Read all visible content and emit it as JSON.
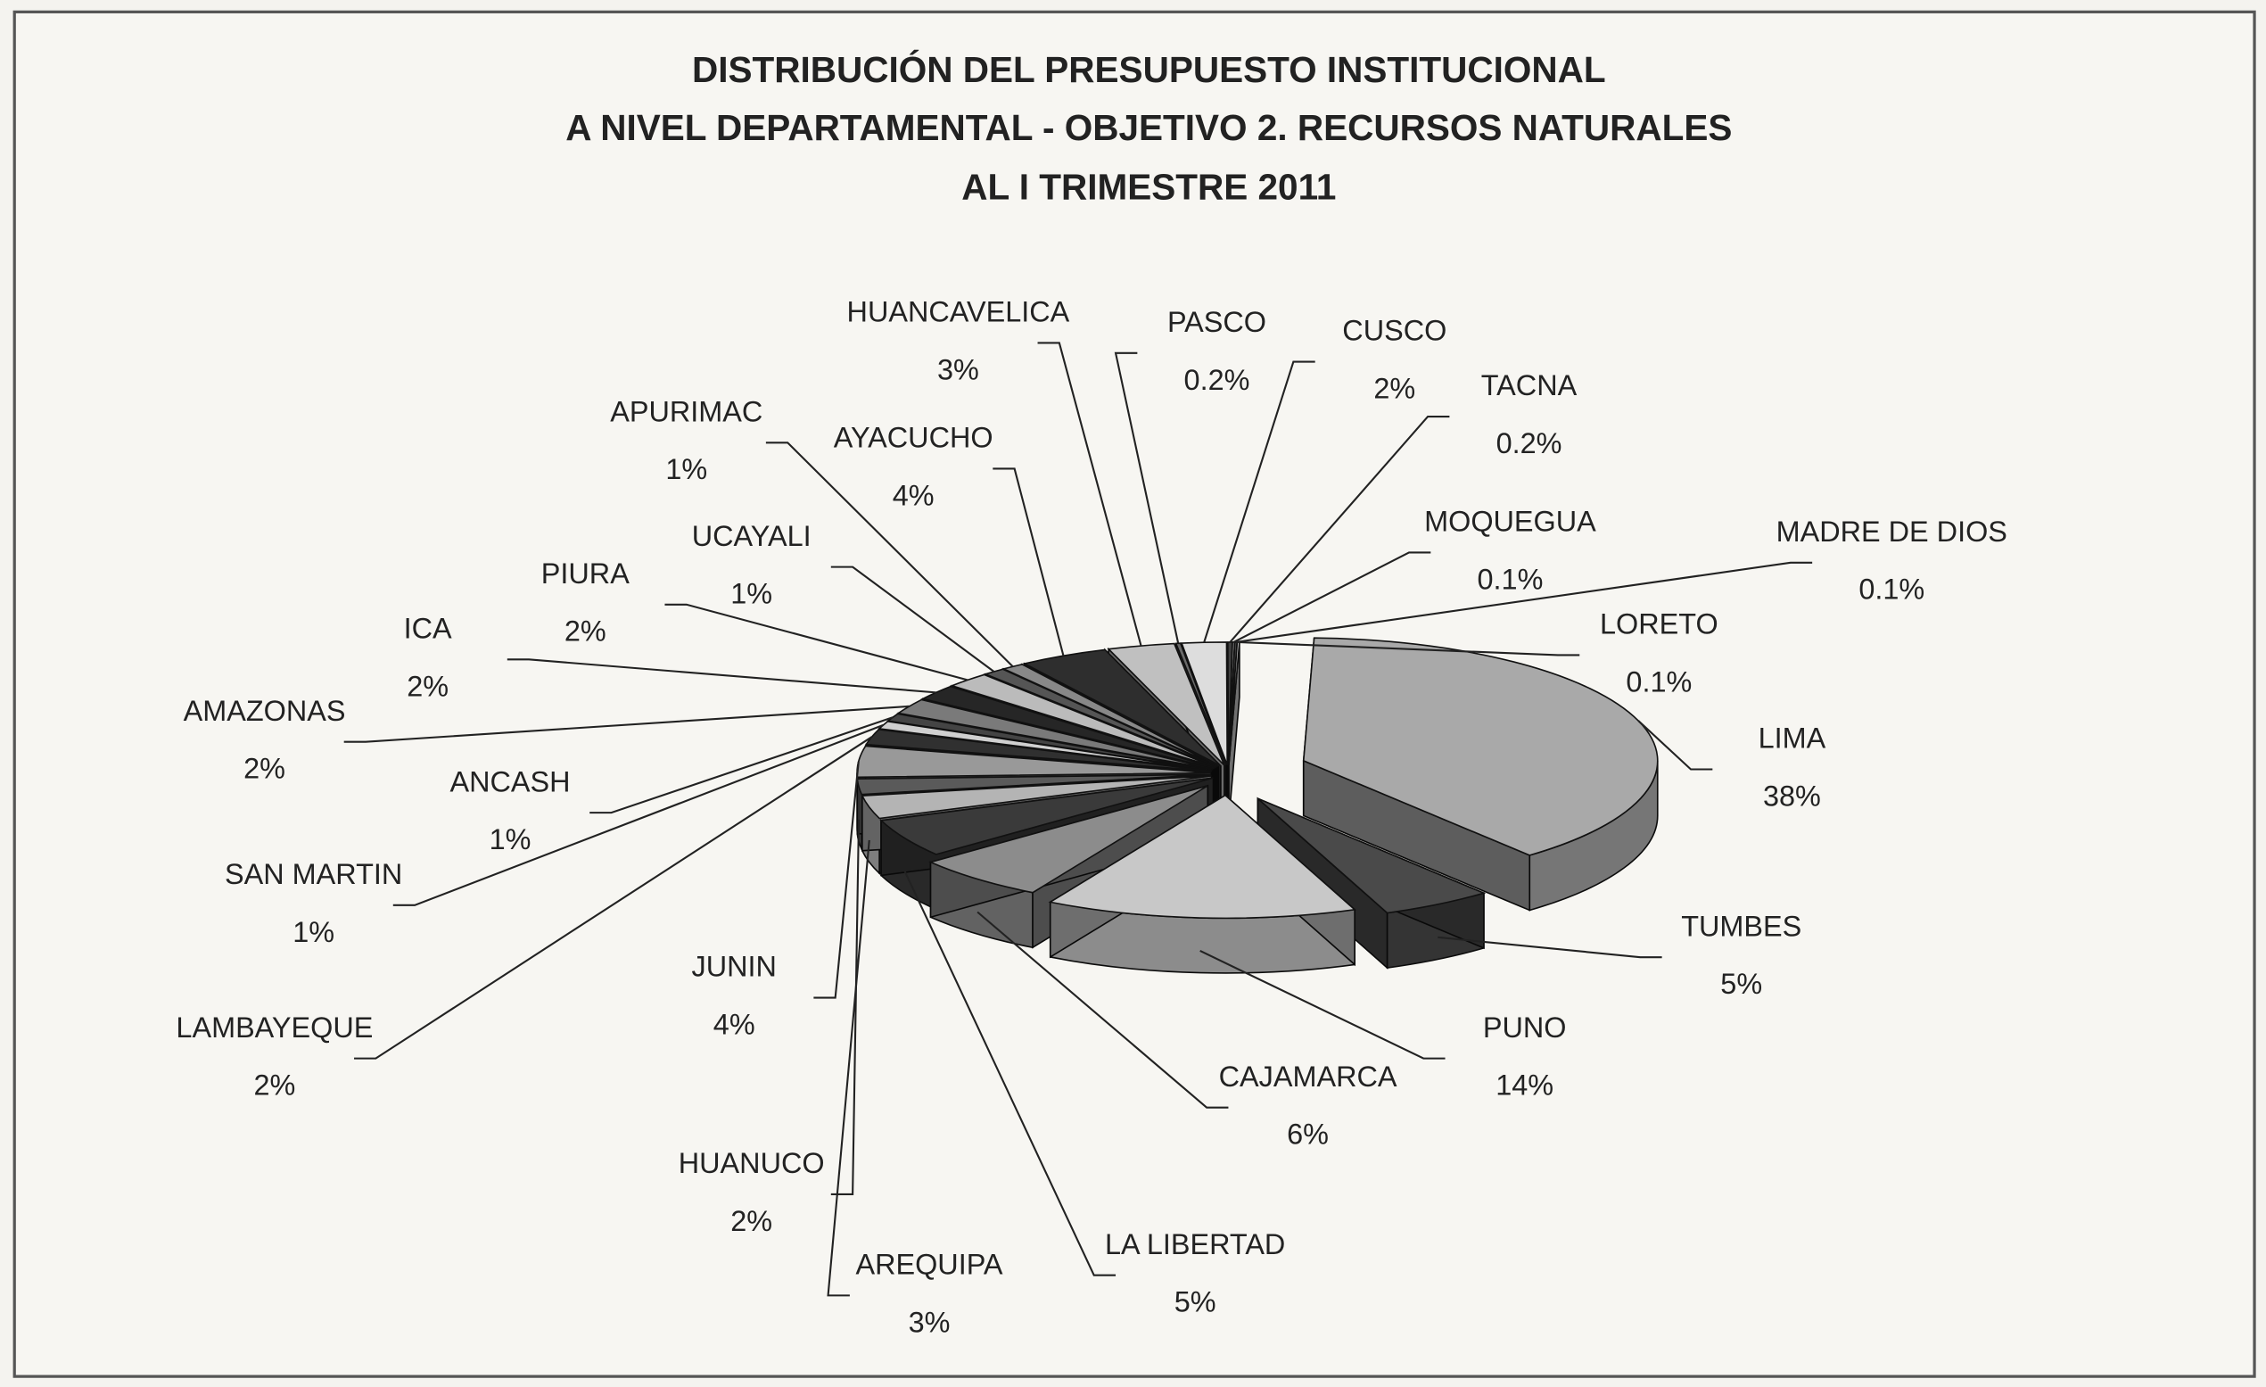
{
  "chart_data": {
    "type": "pie3d",
    "title": [
      "DISTRIBUCIÓN DEL PRESUPUESTO INSTITUCIONAL",
      "A NIVEL DEPARTAMENTAL - OBJETIVO 2. RECURSOS NATURALES",
      "AL I TRIMESTRE 2011"
    ],
    "categories": [
      "LIMA",
      "TUMBES",
      "PUNO",
      "CAJAMARCA",
      "LA LIBERTAD",
      "AREQUIPA",
      "HUANUCO",
      "JUNIN",
      "LAMBAYEQUE",
      "SAN MARTIN",
      "ANCASH",
      "AMAZONAS",
      "ICA",
      "PIURA",
      "UCAYALI",
      "APURIMAC",
      "AYACUCHO",
      "HUANCAVELICA",
      "PASCO",
      "CUSCO",
      "TACNA",
      "MOQUEGUA",
      "MADRE DE DIOS",
      "LORETO"
    ],
    "values": [
      38,
      5,
      14,
      6,
      5,
      3,
      2,
      4,
      2,
      1,
      1,
      2,
      2,
      2,
      1,
      1,
      4,
      3,
      0.2,
      2,
      0.2,
      0.1,
      0.1,
      0.1
    ],
    "value_labels": [
      "38%",
      "5%",
      "14%",
      "6%",
      "5%",
      "3%",
      "2%",
      "4%",
      "2%",
      "1%",
      "1%",
      "2%",
      "2%",
      "2%",
      "1%",
      "1%",
      "4%",
      "3%",
      "0.2%",
      "2%",
      "0.2%",
      "0.1%",
      "0.1%",
      "0.1%"
    ],
    "colors": [
      "#a9a9a9",
      "#4a4a4a",
      "#c8c8c8",
      "#8c8c8c",
      "#3a3a3a",
      "#b4b4b4",
      "#5a5a5a",
      "#999999",
      "#303030",
      "#d0d0d0",
      "#444444",
      "#7a7a7a",
      "#262626",
      "#bbbbbb",
      "#555555",
      "#888888",
      "#2e2e2e",
      "#c0c0c0",
      "#6a6a6a",
      "#dddddd",
      "#404040",
      "#9a9a9a",
      "#505050",
      "#cccccc"
    ]
  }
}
